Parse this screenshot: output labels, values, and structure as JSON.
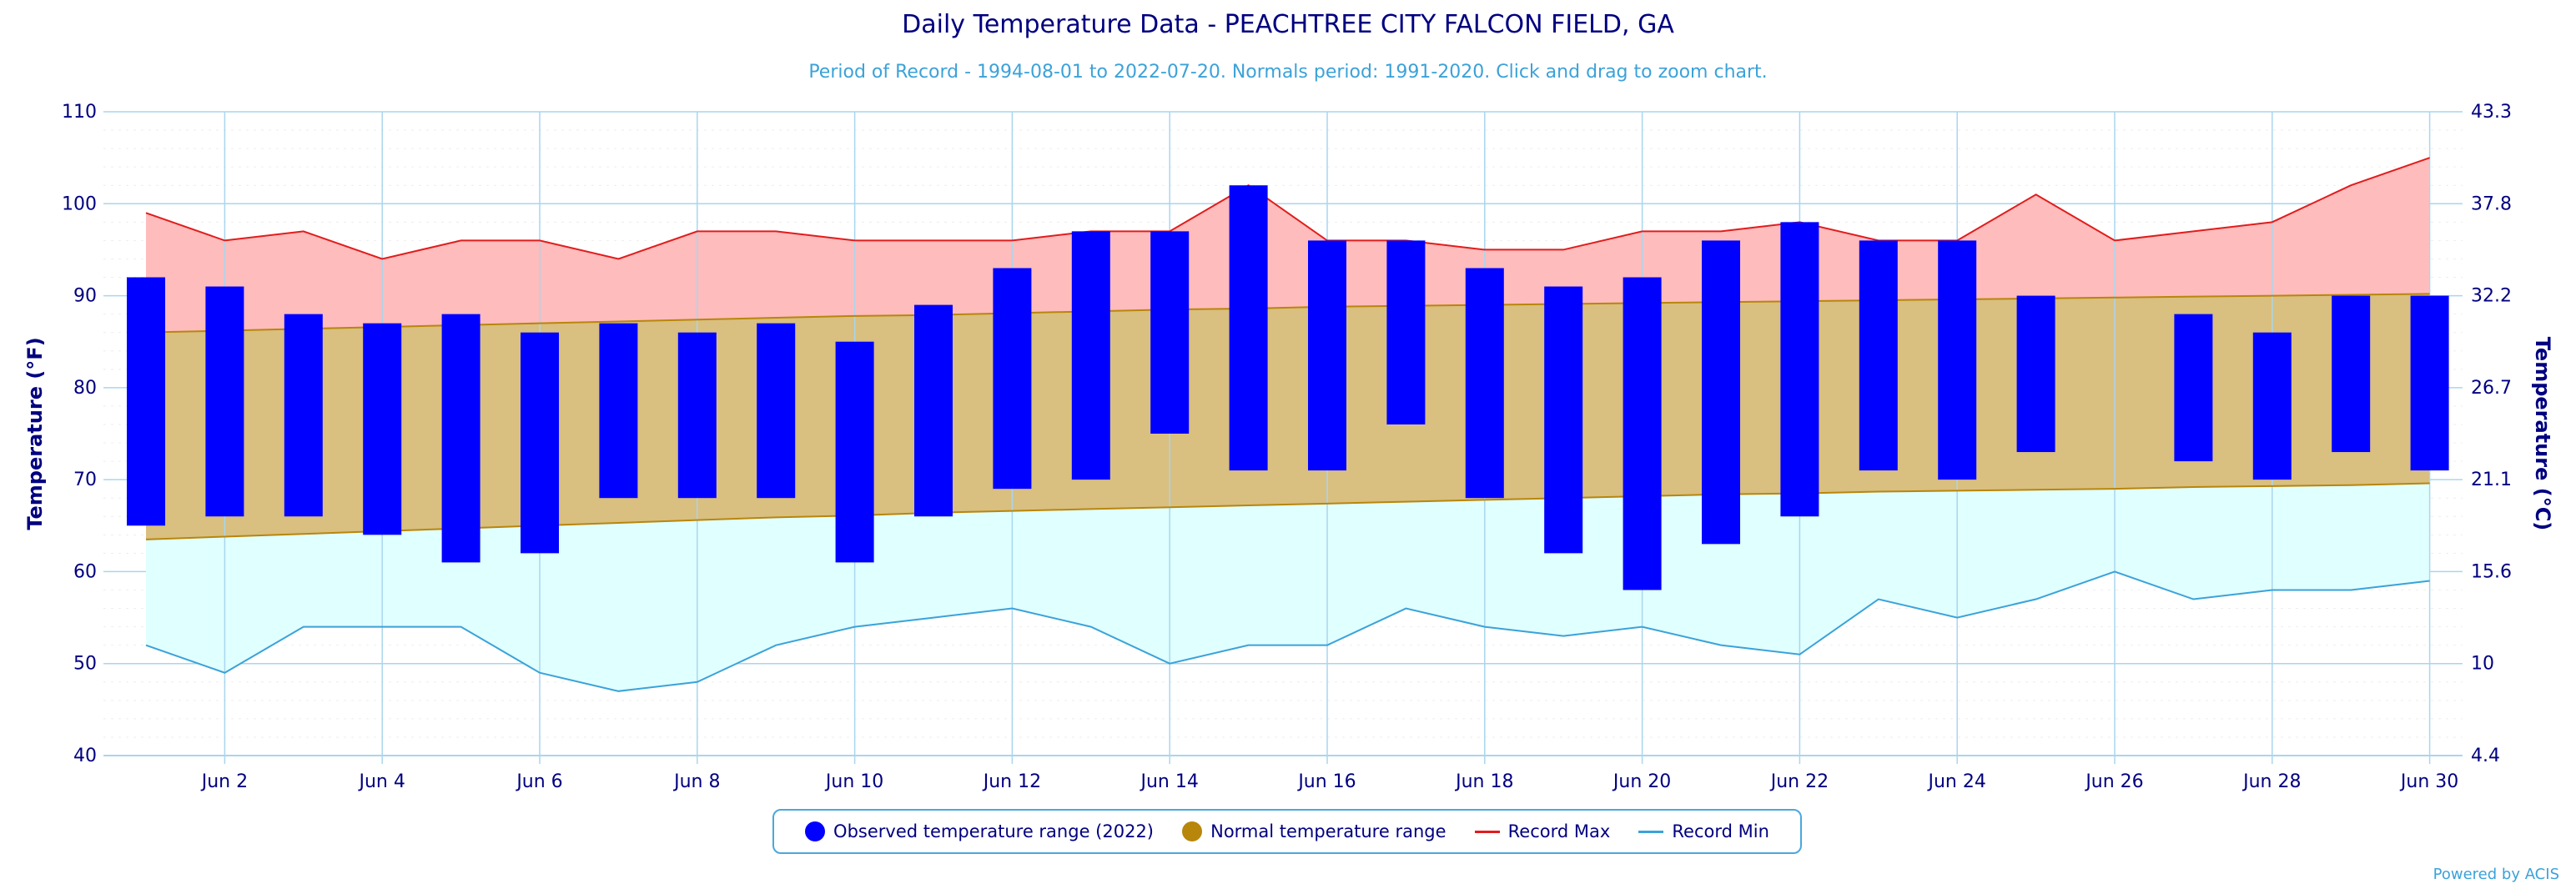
{
  "title": "Daily Temperature Data - PEACHTREE CITY FALCON FIELD, GA",
  "subtitle": "Period of Record - 1994-08-01 to 2022-07-20. Normals period: 1991-2020. Click and drag to zoom chart.",
  "credit": "Powered by ACIS",
  "legend": {
    "observed": "Observed temperature range (2022)",
    "normal": "Normal temperature range",
    "record_max": "Record Max",
    "record_min": "Record Min"
  },
  "colors": {
    "observed": "#0000ff",
    "normal_fill": "#d9bf80",
    "normal_line": "#b8860b",
    "record_max_fill": "#ffbcbc",
    "record_max_line": "#e21c1c",
    "record_min_fill": "#e0ffff",
    "record_min_line": "#3ba2d9",
    "grid": "#a9d6ee",
    "axis_text": "#000080"
  },
  "chart_data": {
    "type": "bar",
    "xlabel": "",
    "ylabel": "Temperature (°F)",
    "ylabel_right": "Temperature (°C)",
    "ylim": [
      40,
      110
    ],
    "y_ticks": [
      40,
      50,
      60,
      70,
      80,
      90,
      100,
      110
    ],
    "y_ticks_right": [
      "4.4",
      "10",
      "15.6",
      "21.1",
      "26.7",
      "32.2",
      "37.8",
      "43.3"
    ],
    "x_tick_labels": [
      "Jun 2",
      "Jun 4",
      "Jun 6",
      "Jun 8",
      "Jun 10",
      "Jun 12",
      "Jun 14",
      "Jun 16",
      "Jun 18",
      "Jun 20",
      "Jun 22",
      "Jun 24",
      "Jun 26",
      "Jun 28",
      "Jun 30"
    ],
    "days": [
      1,
      2,
      3,
      4,
      5,
      6,
      7,
      8,
      9,
      10,
      11,
      12,
      13,
      14,
      15,
      16,
      17,
      18,
      19,
      20,
      21,
      22,
      23,
      24,
      25,
      26,
      27,
      28,
      29,
      30
    ],
    "observed": [
      {
        "day": 1,
        "low": 65,
        "high": 92
      },
      {
        "day": 2,
        "low": 66,
        "high": 91
      },
      {
        "day": 3,
        "low": 66,
        "high": 88
      },
      {
        "day": 4,
        "low": 64,
        "high": 87
      },
      {
        "day": 5,
        "low": 61,
        "high": 88
      },
      {
        "day": 6,
        "low": 62,
        "high": 86
      },
      {
        "day": 7,
        "low": 68,
        "high": 87
      },
      {
        "day": 8,
        "low": 68,
        "high": 86
      },
      {
        "day": 9,
        "low": 68,
        "high": 87
      },
      {
        "day": 10,
        "low": 61,
        "high": 85
      },
      {
        "day": 11,
        "low": 66,
        "high": 89
      },
      {
        "day": 12,
        "low": 69,
        "high": 93
      },
      {
        "day": 13,
        "low": 70,
        "high": 97
      },
      {
        "day": 14,
        "low": 75,
        "high": 97
      },
      {
        "day": 15,
        "low": 71,
        "high": 102
      },
      {
        "day": 16,
        "low": 71,
        "high": 96
      },
      {
        "day": 17,
        "low": 76,
        "high": 96
      },
      {
        "day": 18,
        "low": 68,
        "high": 93
      },
      {
        "day": 19,
        "low": 62,
        "high": 91
      },
      {
        "day": 20,
        "low": 58,
        "high": 92
      },
      {
        "day": 21,
        "low": 63,
        "high": 96
      },
      {
        "day": 22,
        "low": 66,
        "high": 98
      },
      {
        "day": 23,
        "low": 71,
        "high": 96
      },
      {
        "day": 24,
        "low": 70,
        "high": 96
      },
      {
        "day": 25,
        "low": 73,
        "high": 90
      },
      {
        "day": 27,
        "low": 72,
        "high": 88
      },
      {
        "day": 28,
        "low": 70,
        "high": 86
      },
      {
        "day": 29,
        "low": 73,
        "high": 90
      },
      {
        "day": 30,
        "low": 71,
        "high": 90
      }
    ],
    "normal_high": [
      86,
      86.2,
      86.4,
      86.6,
      86.8,
      87,
      87.2,
      87.4,
      87.6,
      87.8,
      87.9,
      88.1,
      88.3,
      88.5,
      88.6,
      88.8,
      88.9,
      89,
      89.1,
      89.2,
      89.3,
      89.4,
      89.5,
      89.6,
      89.7,
      89.8,
      89.9,
      90,
      90.1,
      90.2
    ],
    "normal_low": [
      63.5,
      63.8,
      64.1,
      64.4,
      64.7,
      65,
      65.3,
      65.6,
      65.9,
      66.1,
      66.4,
      66.6,
      66.8,
      67.0,
      67.2,
      67.4,
      67.6,
      67.8,
      68.0,
      68.2,
      68.4,
      68.5,
      68.7,
      68.8,
      68.9,
      69.0,
      69.2,
      69.3,
      69.4,
      69.6
    ],
    "record_max": [
      99,
      96,
      97,
      94,
      96,
      96,
      94,
      97,
      97,
      96,
      96,
      96,
      97,
      97,
      102,
      96,
      96,
      95,
      95,
      97,
      97,
      98,
      96,
      96,
      101,
      96,
      97,
      98,
      102,
      105
    ],
    "record_min": [
      52,
      49,
      54,
      54,
      54,
      49,
      47,
      48,
      52,
      54,
      55,
      56,
      54,
      50,
      52,
      52,
      56,
      54,
      53,
      54,
      52,
      51,
      57,
      55,
      57,
      60,
      57,
      58,
      58,
      59
    ]
  }
}
